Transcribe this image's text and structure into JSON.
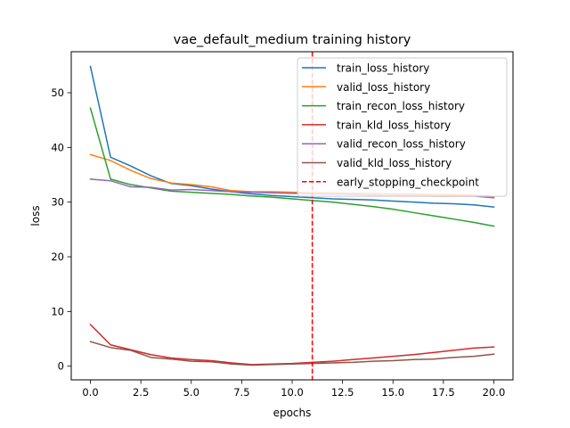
{
  "chart_data": {
    "type": "line",
    "title": "vae_default_medium training history",
    "xlabel": "epochs",
    "ylabel": "loss",
    "xlim": [
      -0.95,
      20.95
    ],
    "ylim": [
      -2.5,
      57.5
    ],
    "grid": false,
    "legend_position": "top-right",
    "x_ticks": [
      0.0,
      2.5,
      5.0,
      7.5,
      10.0,
      12.5,
      15.0,
      17.5,
      20.0
    ],
    "x_tick_labels": [
      "0.0",
      "2.5",
      "5.0",
      "7.5",
      "10.0",
      "12.5",
      "15.0",
      "17.5",
      "20.0"
    ],
    "y_ticks": [
      0,
      10,
      20,
      30,
      40,
      50
    ],
    "y_tick_labels": [
      "0",
      "10",
      "20",
      "30",
      "40",
      "50"
    ],
    "x": [
      0,
      1,
      2,
      3,
      4,
      5,
      6,
      7,
      8,
      9,
      10,
      11,
      12,
      13,
      14,
      15,
      16,
      17,
      18,
      19,
      20
    ],
    "series": [
      {
        "name": "train_loss_history",
        "color": "#1f77b4",
        "values": [
          54.8,
          38.2,
          36.6,
          34.8,
          33.4,
          33.0,
          32.4,
          31.9,
          31.5,
          31.2,
          31.0,
          30.8,
          30.6,
          30.5,
          30.4,
          30.2,
          30.0,
          29.8,
          29.7,
          29.5,
          29.1
        ]
      },
      {
        "name": "valid_loss_history",
        "color": "#ff7f0e",
        "values": [
          38.7,
          37.6,
          35.8,
          34.3,
          33.5,
          33.2,
          32.8,
          32.1,
          31.9,
          31.9,
          31.8,
          31.7,
          31.7,
          31.6,
          31.6,
          31.5,
          31.5,
          31.4,
          31.4,
          31.3,
          31.0
        ]
      },
      {
        "name": "train_recon_loss_history",
        "color": "#2ca02c",
        "values": [
          47.2,
          34.2,
          33.2,
          32.6,
          32.0,
          31.8,
          31.6,
          31.4,
          31.1,
          30.9,
          30.6,
          30.3,
          30.0,
          29.6,
          29.2,
          28.7,
          28.1,
          27.5,
          26.9,
          26.3,
          25.6
        ]
      },
      {
        "name": "train_kld_loss_history",
        "color": "#d62728",
        "values": [
          7.6,
          3.9,
          3.0,
          2.1,
          1.5,
          1.2,
          1.0,
          0.6,
          0.3,
          0.4,
          0.5,
          0.7,
          0.9,
          1.2,
          1.5,
          1.8,
          2.1,
          2.5,
          2.9,
          3.3,
          3.5
        ]
      },
      {
        "name": "valid_recon_loss_history",
        "color": "#9467bd",
        "values": [
          34.2,
          33.9,
          32.8,
          32.7,
          32.2,
          32.3,
          32.1,
          31.9,
          31.8,
          31.7,
          31.6,
          31.5,
          31.5,
          31.4,
          31.3,
          31.2,
          31.2,
          31.1,
          31.1,
          31.1,
          30.8
        ]
      },
      {
        "name": "valid_kld_loss_history",
        "color": "#8c564b",
        "values": [
          4.5,
          3.4,
          2.9,
          1.6,
          1.3,
          0.9,
          0.8,
          0.4,
          0.2,
          0.3,
          0.4,
          0.5,
          0.6,
          0.7,
          0.9,
          1.0,
          1.2,
          1.3,
          1.6,
          1.8,
          2.2
        ]
      }
    ],
    "vlines": [
      {
        "name": "early_stopping_checkpoint",
        "x": 11,
        "color": "#ff0000",
        "style": "dashed"
      }
    ]
  }
}
